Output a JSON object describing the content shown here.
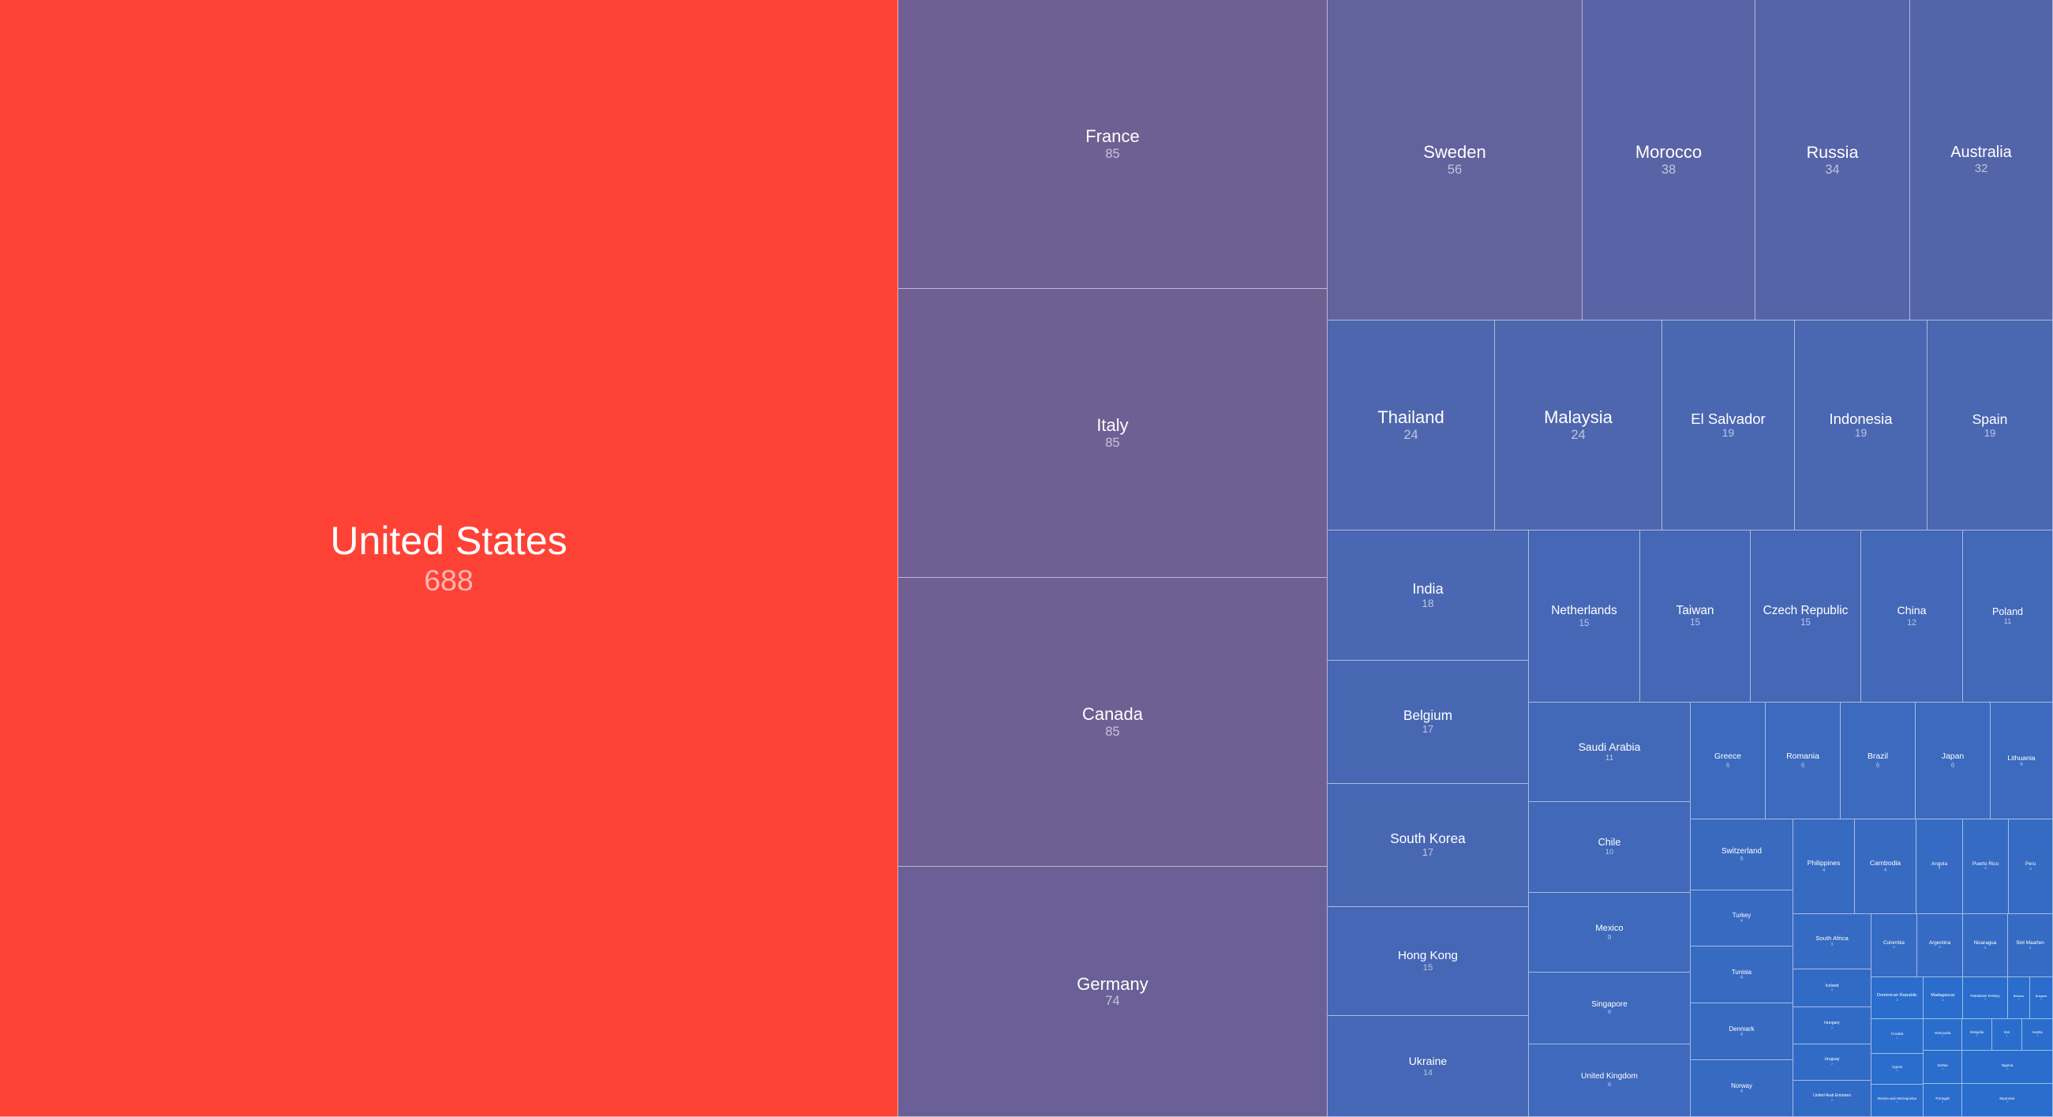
{
  "chart_data": {
    "type": "treemap",
    "title": "",
    "colors": {
      "max": "#ff4236",
      "mid": "#6f5f93",
      "min": "#2a6dcc"
    },
    "items": [
      {
        "name": "United States",
        "value": 688
      },
      {
        "name": "France",
        "value": 85
      },
      {
        "name": "Italy",
        "value": 85
      },
      {
        "name": "Canada",
        "value": 85
      },
      {
        "name": "Germany",
        "value": 74
      },
      {
        "name": "Sweden",
        "value": 56
      },
      {
        "name": "Morocco",
        "value": 38
      },
      {
        "name": "Russia",
        "value": 34
      },
      {
        "name": "Australia",
        "value": 32
      },
      {
        "name": "Thailand",
        "value": 24
      },
      {
        "name": "Malaysia",
        "value": 24
      },
      {
        "name": "El Salvador",
        "value": 19
      },
      {
        "name": "Indonesia",
        "value": 19
      },
      {
        "name": "Spain",
        "value": 19
      },
      {
        "name": "India",
        "value": 18
      },
      {
        "name": "Netherlands",
        "value": 15
      },
      {
        "name": "Taiwan",
        "value": 15
      },
      {
        "name": "Czech Republic",
        "value": 15
      },
      {
        "name": "China",
        "value": 12
      },
      {
        "name": "Poland",
        "value": 11
      },
      {
        "name": "Belgium",
        "value": 17
      },
      {
        "name": "South Korea",
        "value": 17
      },
      {
        "name": "Hong Kong",
        "value": 15
      },
      {
        "name": "Ukraine",
        "value": 14
      },
      {
        "name": "Saudi Arabia",
        "value": 11
      },
      {
        "name": "Chile",
        "value": 10
      },
      {
        "name": "Mexico",
        "value": 9
      },
      {
        "name": "Singapore",
        "value": 8
      },
      {
        "name": "United Kingdom",
        "value": 8
      },
      {
        "name": "Greece",
        "value": 6
      },
      {
        "name": "Romania",
        "value": 6
      },
      {
        "name": "Brazil",
        "value": 6
      },
      {
        "name": "Japan",
        "value": 6
      },
      {
        "name": "Lithuania",
        "value": 6
      },
      {
        "name": "Switzerland",
        "value": 5
      },
      {
        "name": "Turkey",
        "value": 4
      },
      {
        "name": "Tunisia",
        "value": 4
      },
      {
        "name": "Denmark",
        "value": 4
      },
      {
        "name": "Norway",
        "value": 4
      },
      {
        "name": "Philippines",
        "value": 4
      },
      {
        "name": "Cambodia",
        "value": 4
      },
      {
        "name": "Angola",
        "value": 3
      },
      {
        "name": "Puerto Rico",
        "value": 3
      },
      {
        "name": "Peru",
        "value": 3
      },
      {
        "name": "South Africa",
        "value": 3
      },
      {
        "name": "Colombia",
        "value": 3
      },
      {
        "name": "Argentina",
        "value": 3
      },
      {
        "name": "Nicaragua",
        "value": 3
      },
      {
        "name": "Sint Maarten",
        "value": 3
      },
      {
        "name": "Iceland",
        "value": 2
      },
      {
        "name": "Hungary",
        "value": 2
      },
      {
        "name": "Uruguay",
        "value": 2
      },
      {
        "name": "United Arab Emirates",
        "value": 2
      },
      {
        "name": "Dominican Republic",
        "value": 1
      },
      {
        "name": "Madagascar",
        "value": 1
      },
      {
        "name": "Palestinian Territory",
        "value": 1
      },
      {
        "name": "Belarus",
        "value": 1
      },
      {
        "name": "Bulgaria",
        "value": 1
      },
      {
        "name": "Croatia",
        "value": 1
      },
      {
        "name": "Cyprus",
        "value": 1
      },
      {
        "name": "Bosnia and Herzegovina",
        "value": 1
      },
      {
        "name": "Venezuela",
        "value": 1
      },
      {
        "name": "Serbia",
        "value": 1
      },
      {
        "name": "Portugal",
        "value": 1
      },
      {
        "name": "Mongolia",
        "value": 1
      },
      {
        "name": "Iran",
        "value": 1
      },
      {
        "name": "Austria",
        "value": 1
      },
      {
        "name": "Nigeria",
        "value": 1
      },
      {
        "name": "Myanmar",
        "value": 1
      }
    ]
  }
}
